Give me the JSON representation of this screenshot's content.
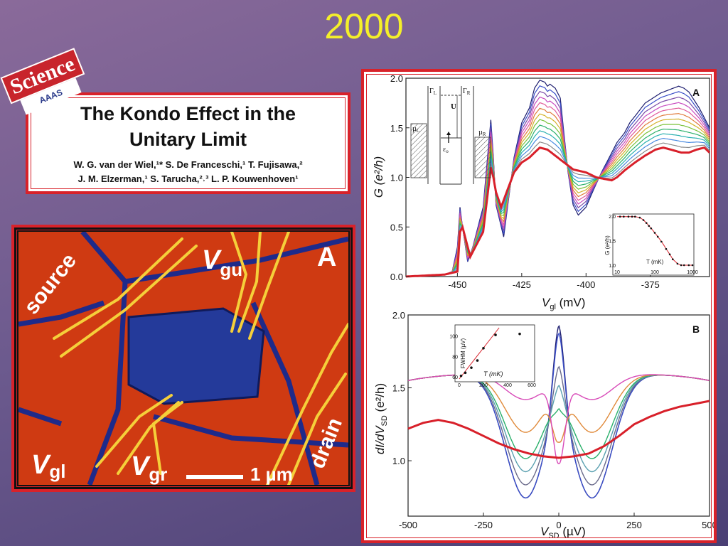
{
  "slide": {
    "title": "2000"
  },
  "paper": {
    "journal": "Science",
    "publisher": "AAAS",
    "title_line1": "The Kondo Effect in the",
    "title_line2": "Unitary Limit",
    "authors_line1": "W. G. van der Wiel,¹* S. De Franceschi,¹ T. Fujisawa,²",
    "authors_line2": "J. M. Elzerman,¹ S. Tarucha,²˒³ L. P. Kouwenhoven¹"
  },
  "micrograph": {
    "label_source": "source",
    "label_drain": "drain",
    "label_vgu": "V",
    "label_vgu_sub": "gu",
    "label_vgl": "V",
    "label_vgl_sub": "gl",
    "label_vgr": "V",
    "label_vgr_sub": "gr",
    "panel_label": "A",
    "scale_label": "1 µm",
    "colors": {
      "background": "#d23c12",
      "dot": "#1f2f8c",
      "gate": "#f6d24a"
    }
  },
  "chart_data": [
    {
      "type": "line",
      "panel_label": "A",
      "xlabel": "V",
      "xlabel_sub": "gl",
      "xlabel_unit": " (mV)",
      "ylabel": "G (e²/h)",
      "xlim": [
        -470,
        -352
      ],
      "ylim": [
        0,
        2.0
      ],
      "x_ticks": [
        -450,
        -425,
        -400,
        -375
      ],
      "y_ticks": [
        0.0,
        0.5,
        1.0,
        1.5,
        2.0
      ],
      "x_tick_labels": [
        "-450",
        "-425",
        "-400",
        "-375"
      ],
      "y_tick_labels": [
        "0.0",
        "0.5",
        "1.0",
        "1.5",
        "2.0"
      ],
      "series_colors": [
        "#1b1b6e",
        "#3a4ec8",
        "#7a4aa8",
        "#c84ac0",
        "#e05a9a",
        "#e07a3a",
        "#d4b22a",
        "#7ac23a",
        "#2ab06a",
        "#2ab0b0",
        "#4a8ae0",
        "#8a8a8a",
        "#d8202a"
      ],
      "series_hot": {
        "x": [
          -470,
          -455,
          -450,
          -449,
          -448,
          -445,
          -440,
          -437,
          -436,
          -435,
          -433,
          -428,
          -425,
          -422,
          -418,
          -415,
          -412,
          -410,
          -407,
          -405,
          -400,
          -396,
          -392,
          -390,
          -388,
          -385,
          -381,
          -377,
          -373,
          -370,
          -367,
          -363,
          -360,
          -357,
          -354,
          -352
        ],
        "y": [
          0.0,
          0.02,
          0.05,
          0.45,
          0.5,
          0.2,
          0.45,
          1.1,
          1.0,
          0.85,
          0.7,
          1.05,
          1.15,
          1.2,
          1.3,
          1.28,
          1.22,
          1.18,
          1.12,
          1.08,
          1.05,
          1.0,
          0.98,
          0.97,
          1.0,
          1.07,
          1.15,
          1.22,
          1.28,
          1.3,
          1.28,
          1.25,
          1.25,
          1.28,
          1.3,
          1.25
        ]
      },
      "series_cold": {
        "x": [
          -470,
          -455,
          -452,
          -450,
          -449,
          -448,
          -446,
          -444,
          -440,
          -437,
          -436,
          -435,
          -432,
          -428,
          -425,
          -422,
          -420,
          -418,
          -416,
          -415,
          -414,
          -412,
          -410,
          -409,
          -407,
          -405,
          -403,
          -400,
          -397,
          -394,
          -391,
          -388,
          -385,
          -383,
          -380,
          -377,
          -374,
          -371,
          -368,
          -366,
          -364,
          -362,
          -360,
          -358,
          -356,
          -354,
          -352
        ],
        "y": [
          0.0,
          0.02,
          0.05,
          0.3,
          0.7,
          0.5,
          0.15,
          0.3,
          0.7,
          1.58,
          1.2,
          0.72,
          0.4,
          1.2,
          1.55,
          1.7,
          1.9,
          1.98,
          1.96,
          1.92,
          1.94,
          1.9,
          1.8,
          1.55,
          1.05,
          0.72,
          0.62,
          0.7,
          0.88,
          1.05,
          1.2,
          1.35,
          1.45,
          1.55,
          1.65,
          1.75,
          1.8,
          1.85,
          1.88,
          1.9,
          1.92,
          1.9,
          1.86,
          1.78,
          1.7,
          1.6,
          1.5
        ]
      },
      "series_count": 13,
      "inset_top": {
        "xlabel": "T (mK)",
        "ylabel": "G (e²/h)",
        "xscale": "log",
        "xlim": [
          10,
          1000
        ],
        "ylim": [
          1.0,
          2.0
        ],
        "x_tick_labels": [
          "10",
          "100",
          "1000"
        ],
        "y_tick_labels": [
          "1.0",
          "1.5",
          "2.0"
        ],
        "x": [
          12,
          15,
          20,
          25,
          30,
          40,
          50,
          60,
          70,
          80,
          100,
          120,
          150,
          200,
          250,
          300,
          400,
          500,
          600,
          800,
          1000
        ],
        "y": [
          1.99,
          1.99,
          1.99,
          1.99,
          1.99,
          1.97,
          1.92,
          1.86,
          1.8,
          1.75,
          1.66,
          1.58,
          1.48,
          1.33,
          1.22,
          1.12,
          1.03,
          1.0,
          1.0,
          1.0,
          1.0
        ]
      },
      "inset_diagram": {
        "label_gamma_l": "Γ",
        "label_gamma_l_sub": "L",
        "label_gamma_r": "Γ",
        "label_gamma_r_sub": "R",
        "label_u": "U",
        "label_mu_l": "µ",
        "label_mu_l_sub": "L",
        "label_mu_r": "µ",
        "label_mu_r_sub": "R",
        "label_eps": "ε",
        "label_eps_sub": "o"
      }
    },
    {
      "type": "line",
      "panel_label": "B",
      "xlabel": "V",
      "xlabel_sub": "SD",
      "xlabel_unit": " (µV)",
      "ylabel": "dI/dV",
      "ylabel_sub": "SD",
      "ylabel_unit": " (e²/h)",
      "xlim": [
        -500,
        500
      ],
      "ylim": [
        0.62,
        2.0
      ],
      "x_ticks": [
        -500,
        -250,
        0,
        250,
        500
      ],
      "y_ticks": [
        1.0,
        1.5,
        2.0
      ],
      "x_tick_labels": [
        "-500",
        "-250",
        "0",
        "250",
        "500"
      ],
      "y_tick_labels": [
        "1.0",
        "1.5",
        "2.0"
      ],
      "series": [
        {
          "color": "#1b1b6e",
          "peak": 1.93,
          "width": 0.95
        },
        {
          "color": "#3a4ec8",
          "peak": 1.88,
          "width": 0.95
        },
        {
          "color": "#6a6a8a",
          "peak": 1.65,
          "width": 0.85
        },
        {
          "color": "#5aa0b0",
          "peak": 1.52,
          "width": 0.75
        },
        {
          "color": "#2ab06a",
          "peak": 1.36,
          "width": 0.65
        },
        {
          "color": "#e08a3a",
          "peak": 1.13,
          "width": 0.45
        },
        {
          "color": "#d84ab8",
          "peak": 0.98,
          "width": 0.2
        }
      ],
      "series_hot": {
        "x": [
          -500,
          -450,
          -400,
          -350,
          -300,
          -250,
          -200,
          -150,
          -100,
          -50,
          0,
          50,
          100,
          150,
          200,
          250,
          300,
          350,
          400,
          450,
          500
        ],
        "y": [
          1.22,
          1.26,
          1.28,
          1.26,
          1.22,
          1.17,
          1.12,
          1.08,
          1.05,
          1.03,
          1.02,
          1.03,
          1.05,
          1.1,
          1.17,
          1.25,
          1.3,
          1.34,
          1.37,
          1.39,
          1.41
        ]
      },
      "inset": {
        "xlabel": "T (mK)",
        "ylabel": "FWHM (µV)",
        "xlim": [
          0,
          600
        ],
        "ylim": [
          58,
          108
        ],
        "x_tick_labels": [
          "0",
          "200",
          "400",
          "600"
        ],
        "y_tick_labels": [
          "60",
          "80",
          "100"
        ],
        "x": [
          15,
          50,
          100,
          150,
          200,
          300,
          500
        ],
        "y": [
          61,
          64,
          69,
          76,
          88,
          101,
          102
        ],
        "fit_x": [
          0,
          330
        ],
        "fit_y": [
          58,
          108
        ]
      }
    }
  ]
}
